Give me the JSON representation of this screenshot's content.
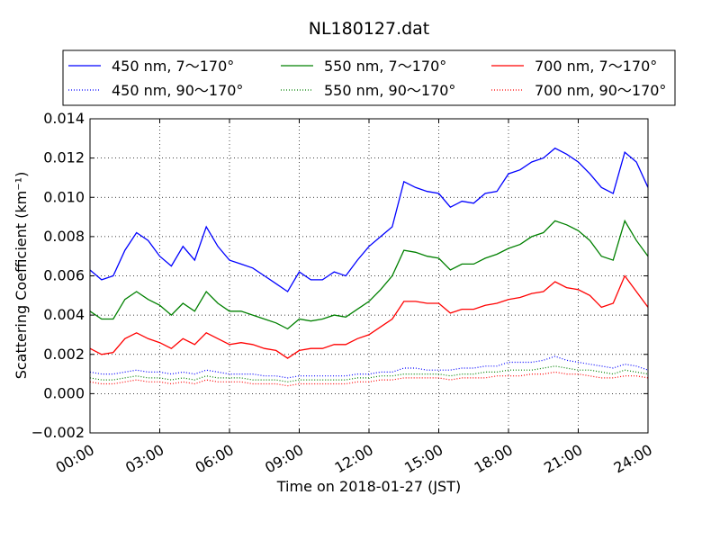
{
  "chart_data": {
    "type": "line",
    "title": "NL180127.dat",
    "xlabel": "Time on 2018-01-27 (JST)",
    "ylabel": "Scattering Coefficient (km⁻¹)",
    "xlim": [
      "00:00",
      "24:00"
    ],
    "ylim": [
      -0.002,
      0.014
    ],
    "x_ticks": [
      "00:00",
      "03:00",
      "06:00",
      "09:00",
      "12:00",
      "15:00",
      "18:00",
      "21:00",
      "24:00"
    ],
    "y_ticks": [
      "−0.002",
      "0.000",
      "0.002",
      "0.004",
      "0.006",
      "0.008",
      "0.010",
      "0.012",
      "0.014"
    ],
    "grid": true,
    "legend_position": "top, above plot",
    "x": [
      "00:00",
      "00:30",
      "01:00",
      "01:30",
      "02:00",
      "02:30",
      "03:00",
      "03:30",
      "04:00",
      "04:30",
      "05:00",
      "05:30",
      "06:00",
      "06:30",
      "07:00",
      "07:30",
      "08:00",
      "08:30",
      "09:00",
      "09:30",
      "10:00",
      "10:30",
      "11:00",
      "11:30",
      "12:00",
      "12:30",
      "13:00",
      "13:30",
      "14:00",
      "14:30",
      "15:00",
      "15:30",
      "16:00",
      "16:30",
      "17:00",
      "17:30",
      "18:00",
      "18:30",
      "19:00",
      "19:30",
      "20:00",
      "20:30",
      "21:00",
      "21:30",
      "22:00",
      "22:30",
      "23:00",
      "23:30",
      "24:00"
    ],
    "series": [
      {
        "name": "450 nm, 7～170°",
        "color": "#0000ff",
        "style": "solid",
        "values": [
          0.0063,
          0.0058,
          0.006,
          0.0073,
          0.0082,
          0.0078,
          0.007,
          0.0065,
          0.0075,
          0.0068,
          0.0085,
          0.0075,
          0.0068,
          0.0066,
          0.0064,
          0.006,
          0.0056,
          0.0052,
          0.0062,
          0.0058,
          0.0058,
          0.0062,
          0.006,
          0.0068,
          0.0075,
          0.008,
          0.0085,
          0.0108,
          0.0105,
          0.0103,
          0.0102,
          0.0095,
          0.0098,
          0.0097,
          0.0102,
          0.0103,
          0.0112,
          0.0114,
          0.0118,
          0.012,
          0.0125,
          0.0122,
          0.0118,
          0.0112,
          0.0105,
          0.0102,
          0.0123,
          0.0118,
          0.0105
        ]
      },
      {
        "name": "450 nm, 90～170°",
        "color": "#0000ff",
        "style": "dotted",
        "values": [
          0.0011,
          0.001,
          0.001,
          0.0011,
          0.0012,
          0.0011,
          0.0011,
          0.001,
          0.0011,
          0.001,
          0.0012,
          0.0011,
          0.001,
          0.001,
          0.001,
          0.0009,
          0.0009,
          0.0008,
          0.0009,
          0.0009,
          0.0009,
          0.0009,
          0.0009,
          0.001,
          0.001,
          0.0011,
          0.0011,
          0.0013,
          0.0013,
          0.0012,
          0.0012,
          0.0012,
          0.0013,
          0.0013,
          0.0014,
          0.0014,
          0.0016,
          0.0016,
          0.0016,
          0.0017,
          0.0019,
          0.0017,
          0.0016,
          0.0015,
          0.0014,
          0.0013,
          0.0015,
          0.0014,
          0.0012
        ]
      },
      {
        "name": "550 nm, 7～170°",
        "color": "#008000",
        "style": "solid",
        "values": [
          0.0042,
          0.0038,
          0.0038,
          0.0048,
          0.0052,
          0.0048,
          0.0045,
          0.004,
          0.0046,
          0.0042,
          0.0052,
          0.0046,
          0.0042,
          0.0042,
          0.004,
          0.0038,
          0.0036,
          0.0033,
          0.0038,
          0.0037,
          0.0038,
          0.004,
          0.0039,
          0.0043,
          0.0047,
          0.0053,
          0.006,
          0.0073,
          0.0072,
          0.007,
          0.0069,
          0.0063,
          0.0066,
          0.0066,
          0.0069,
          0.0071,
          0.0074,
          0.0076,
          0.008,
          0.0082,
          0.0088,
          0.0086,
          0.0083,
          0.0078,
          0.007,
          0.0068,
          0.0088,
          0.0078,
          0.007
        ]
      },
      {
        "name": "550 nm, 90～170°",
        "color": "#008000",
        "style": "dotted",
        "values": [
          0.0008,
          0.0007,
          0.0007,
          0.0008,
          0.0009,
          0.0008,
          0.0008,
          0.0007,
          0.0008,
          0.0007,
          0.0009,
          0.0008,
          0.0008,
          0.0008,
          0.0007,
          0.0007,
          0.0007,
          0.0006,
          0.0007,
          0.0007,
          0.0007,
          0.0007,
          0.0007,
          0.0008,
          0.0008,
          0.0009,
          0.0009,
          0.001,
          0.001,
          0.001,
          0.001,
          0.0009,
          0.001,
          0.001,
          0.0011,
          0.0011,
          0.0012,
          0.0012,
          0.0012,
          0.0013,
          0.0014,
          0.0013,
          0.0012,
          0.0012,
          0.0011,
          0.001,
          0.0012,
          0.0011,
          0.001
        ]
      },
      {
        "name": "700 nm, 7～170°",
        "color": "#ff0000",
        "style": "solid",
        "values": [
          0.0023,
          0.002,
          0.0021,
          0.0028,
          0.0031,
          0.0028,
          0.0026,
          0.0023,
          0.0028,
          0.0025,
          0.0031,
          0.0028,
          0.0025,
          0.0026,
          0.0025,
          0.0023,
          0.0022,
          0.0018,
          0.0022,
          0.0023,
          0.0023,
          0.0025,
          0.0025,
          0.0028,
          0.003,
          0.0034,
          0.0038,
          0.0047,
          0.0047,
          0.0046,
          0.0046,
          0.0041,
          0.0043,
          0.0043,
          0.0045,
          0.0046,
          0.0048,
          0.0049,
          0.0051,
          0.0052,
          0.0057,
          0.0054,
          0.0053,
          0.005,
          0.0044,
          0.0046,
          0.006,
          0.0052,
          0.0044
        ]
      },
      {
        "name": "700 nm, 90～170°",
        "color": "#ff0000",
        "style": "dotted",
        "values": [
          0.0006,
          0.0005,
          0.0005,
          0.0006,
          0.0007,
          0.0006,
          0.0006,
          0.0005,
          0.0006,
          0.0005,
          0.0007,
          0.0006,
          0.0006,
          0.0006,
          0.0005,
          0.0005,
          0.0005,
          0.0004,
          0.0005,
          0.0005,
          0.0005,
          0.0005,
          0.0005,
          0.0006,
          0.0006,
          0.0007,
          0.0007,
          0.0008,
          0.0008,
          0.0008,
          0.0008,
          0.0007,
          0.0008,
          0.0008,
          0.0008,
          0.0009,
          0.0009,
          0.0009,
          0.001,
          0.001,
          0.0011,
          0.001,
          0.001,
          0.0009,
          0.0008,
          0.0008,
          0.0009,
          0.0009,
          0.0008
        ]
      }
    ]
  }
}
